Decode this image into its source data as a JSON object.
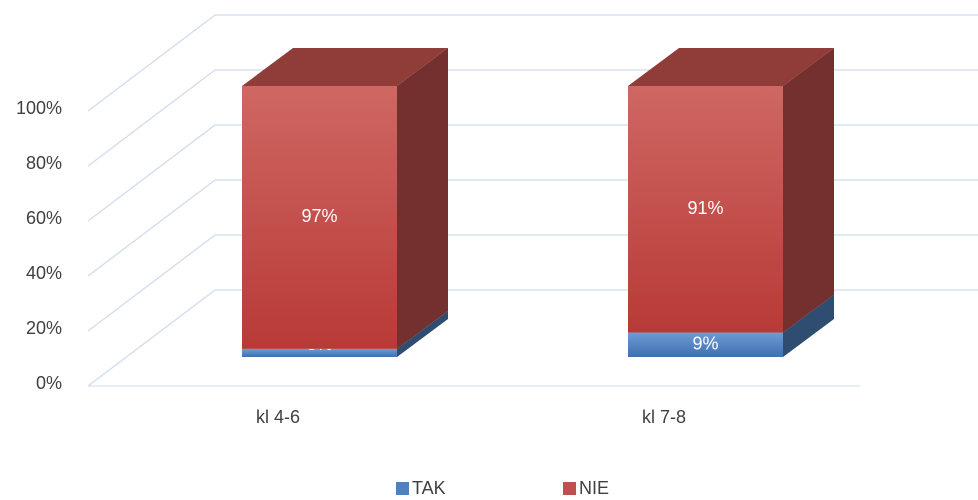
{
  "chart_data": {
    "type": "bar3d_stacked",
    "categories": [
      "kl 4-6",
      "kl 7-8"
    ],
    "series": [
      {
        "name": "TAK",
        "color": "#4f81bd",
        "values": [
          3,
          9
        ],
        "value_labels": [
          "3%",
          "9%"
        ]
      },
      {
        "name": "NIE",
        "color": "#c0504d",
        "values": [
          97,
          91
        ],
        "value_labels": [
          "97%",
          "91%"
        ]
      }
    ],
    "ylim": [
      0,
      100
    ],
    "yticks": [
      {
        "value": 0,
        "label": "0%"
      },
      {
        "value": 20,
        "label": "20%"
      },
      {
        "value": 40,
        "label": "40%"
      },
      {
        "value": 60,
        "label": "60%"
      },
      {
        "value": 80,
        "label": "80%"
      },
      {
        "value": 100,
        "label": "100%"
      }
    ],
    "grid": true,
    "legend": "bottom"
  }
}
